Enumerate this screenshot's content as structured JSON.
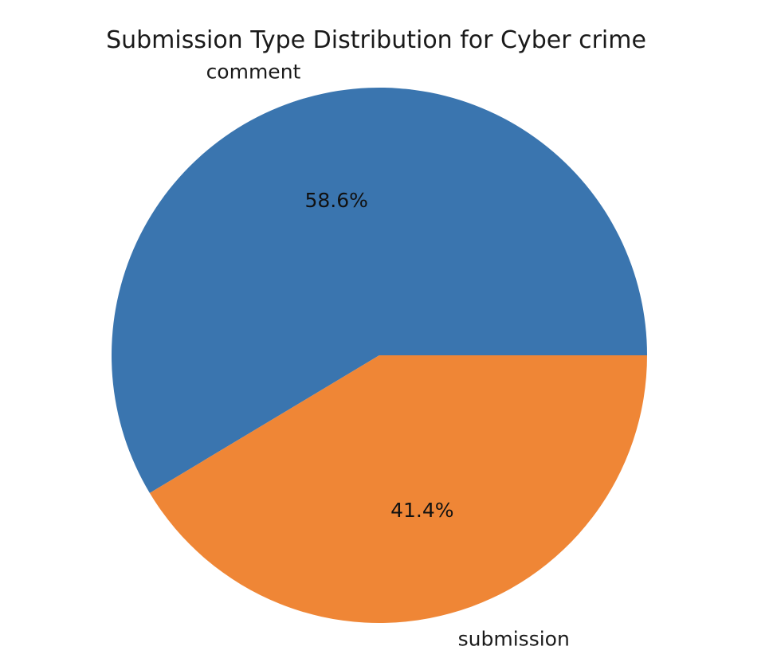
{
  "chart_data": {
    "type": "pie",
    "title": "Submission Type Distribution for Cyber crime",
    "categories": [
      "comment",
      "submission"
    ],
    "values": [
      58.6,
      41.4
    ],
    "value_labels": [
      "58.6%",
      "41.4%"
    ],
    "colors": [
      "#3a75af",
      "#ef8636"
    ],
    "start_angle_deg": 0,
    "direction": "counterclockwise",
    "legend": "none"
  }
}
